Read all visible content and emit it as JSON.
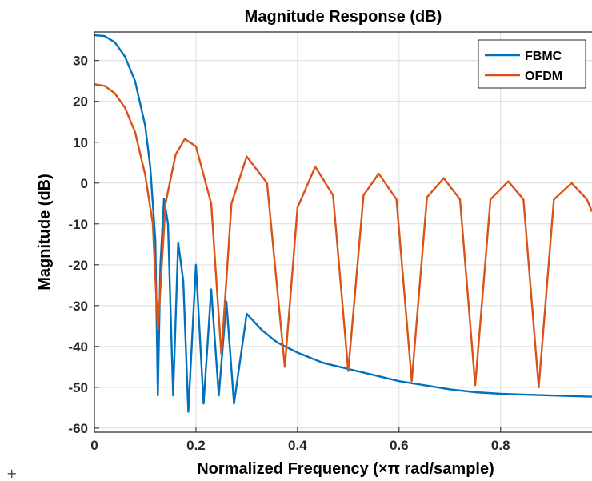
{
  "chart_data": {
    "type": "line",
    "title": "Magnitude Response (dB)",
    "xlabel": "Normalized Frequency (×π rad/sample)",
    "ylabel": "Magnitude (dB)",
    "xlim": [
      0,
      0.98
    ],
    "ylim": [
      -61,
      37
    ],
    "xticks": [
      0,
      0.2,
      0.4,
      0.6,
      0.8
    ],
    "xtick_labels": [
      "0",
      "0.2",
      "0.4",
      "0.6",
      "0.8"
    ],
    "yticks": [
      30,
      20,
      10,
      0,
      -10,
      -20,
      -30,
      -40,
      -50,
      -60
    ],
    "ytick_labels": [
      "30",
      "20",
      "10",
      "0",
      "-10",
      "-20",
      "-30",
      "-40",
      "-50",
      "-60"
    ],
    "grid": true,
    "legend": "top-right",
    "series": [
      {
        "name": "FBMC",
        "color": "#0072BD",
        "x": [
          0,
          0.02,
          0.04,
          0.06,
          0.08,
          0.1,
          0.11,
          0.12,
          0.125,
          0.13,
          0.137,
          0.145,
          0.155,
          0.165,
          0.175,
          0.185,
          0.2,
          0.215,
          0.23,
          0.245,
          0.26,
          0.275,
          0.3,
          0.33,
          0.36,
          0.4,
          0.45,
          0.5,
          0.55,
          0.6,
          0.65,
          0.7,
          0.75,
          0.8,
          0.85,
          0.9,
          0.95,
          0.98
        ],
        "values": [
          36.2,
          36,
          34.5,
          31,
          25,
          14,
          4,
          -14,
          -52,
          -20,
          -3.8,
          -10,
          -52,
          -14.5,
          -24,
          -56,
          -20,
          -54,
          -26,
          -52,
          -29,
          -54,
          -32,
          -36,
          -39,
          -41.5,
          -44,
          -45.5,
          -47,
          -48.5,
          -49.5,
          -50.5,
          -51.2,
          -51.6,
          -51.8,
          -52,
          -52.2,
          -52.3
        ]
      },
      {
        "name": "OFDM",
        "color": "#D95319",
        "x": [
          0,
          0.02,
          0.04,
          0.06,
          0.08,
          0.1,
          0.115,
          0.125,
          0.14,
          0.16,
          0.178,
          0.2,
          0.23,
          0.25,
          0.27,
          0.3,
          0.34,
          0.375,
          0.4,
          0.435,
          0.47,
          0.5,
          0.53,
          0.56,
          0.595,
          0.625,
          0.655,
          0.688,
          0.72,
          0.75,
          0.78,
          0.815,
          0.845,
          0.875,
          0.905,
          0.94,
          0.97,
          0.98
        ],
        "values": [
          24.2,
          23.8,
          22,
          18.5,
          12.5,
          2,
          -10,
          -36,
          -5,
          7,
          10.8,
          9,
          -5,
          -42,
          -5,
          6.5,
          0,
          -45,
          -6,
          4,
          -3,
          -46,
          -3,
          2.3,
          -4,
          -48.5,
          -3.5,
          1.2,
          -4,
          -49.5,
          -4,
          0.4,
          -4,
          -50,
          -4,
          0,
          -4,
          -7
        ]
      }
    ]
  }
}
